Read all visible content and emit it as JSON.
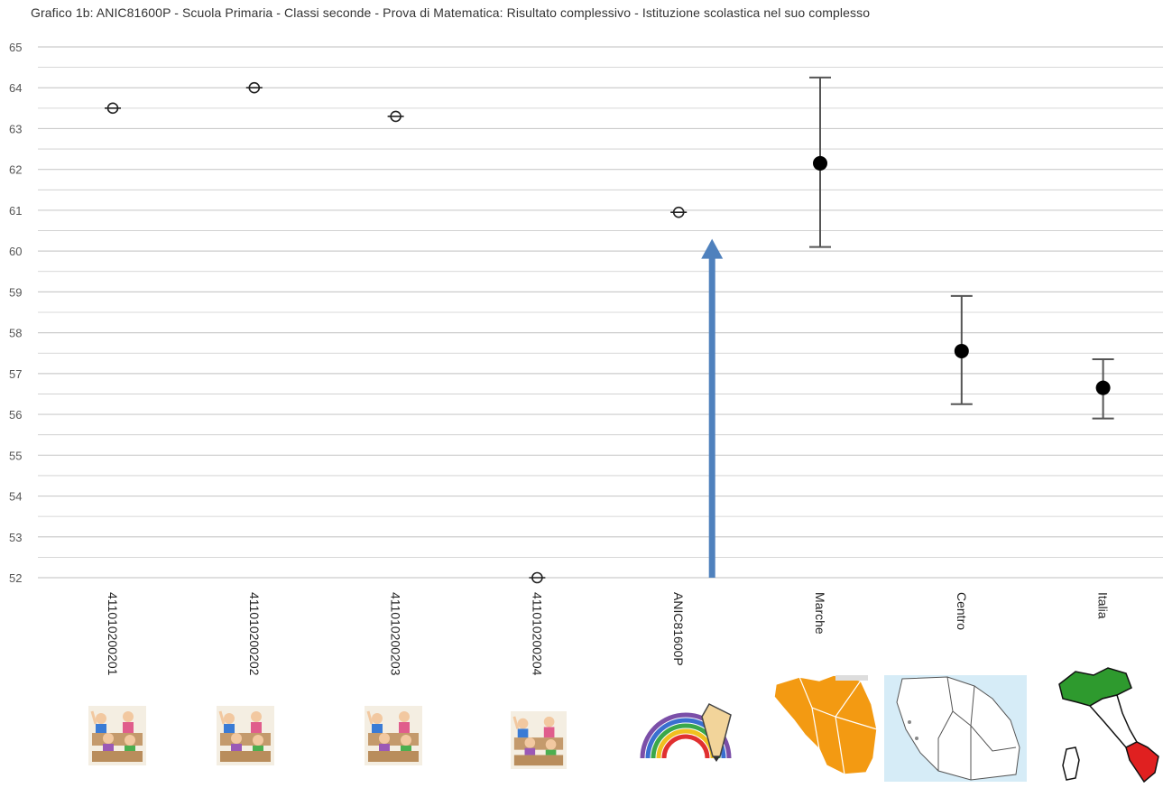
{
  "chart_data": {
    "type": "scatter",
    "title": "Grafico 1b: ANIC81600P - Scuola Primaria - Classi seconde - Prova di Matematica: Risultato complessivo - Istituzione scolastica nel suo complesso",
    "xlabel": "",
    "ylabel": "",
    "ylim": [
      52,
      65
    ],
    "yticks": [
      52,
      53,
      54,
      55,
      56,
      57,
      58,
      59,
      60,
      61,
      62,
      63,
      64,
      65
    ],
    "grid": true,
    "categories": [
      "411010200201",
      "411010200202",
      "411010200203",
      "411010200204",
      "ANIC81600P",
      "Marche",
      "Centro",
      "Italia"
    ],
    "series": [
      {
        "values": [
          63.5,
          64.0,
          63.3,
          52.0,
          60.95,
          62.15,
          57.55,
          56.65
        ],
        "lower": [
          63.5,
          64.0,
          63.3,
          52.0,
          60.95,
          60.1,
          56.25,
          55.9
        ],
        "upper": [
          63.5,
          64.0,
          63.3,
          52.0,
          60.95,
          64.25,
          58.9,
          57.35
        ],
        "marker": [
          "hollow",
          "hollow",
          "hollow",
          "hollow",
          "hollow",
          "filled",
          "filled",
          "filled"
        ]
      }
    ],
    "annotations": [
      {
        "type": "arrow",
        "x_category": "ANIC81600P",
        "from_y": 52.0,
        "to_y": 60.3,
        "color": "#4f81bd"
      }
    ]
  },
  "images": [
    {
      "category": "411010200201",
      "icon": "classroom-students-picture"
    },
    {
      "category": "411010200202",
      "icon": "classroom-students-picture"
    },
    {
      "category": "411010200203",
      "icon": "classroom-students-picture"
    },
    {
      "category": "411010200204",
      "icon": "classroom-students-picture"
    },
    {
      "category": "ANIC81600P",
      "icon": "rainbow-pencil-picture"
    },
    {
      "category": "Marche",
      "icon": "marche-region-map"
    },
    {
      "category": "Centro",
      "icon": "central-italy-map"
    },
    {
      "category": "Italia",
      "icon": "italy-map"
    }
  ],
  "colors": {
    "grid": "#cccccc",
    "marker": "#000000",
    "errorbar": "#555555",
    "arrow": "#4f81bd",
    "marche": "#f39a12",
    "centro_sea": "#d6ecf7",
    "italy_green": "#2e9a2e",
    "italy_red": "#e02020"
  }
}
